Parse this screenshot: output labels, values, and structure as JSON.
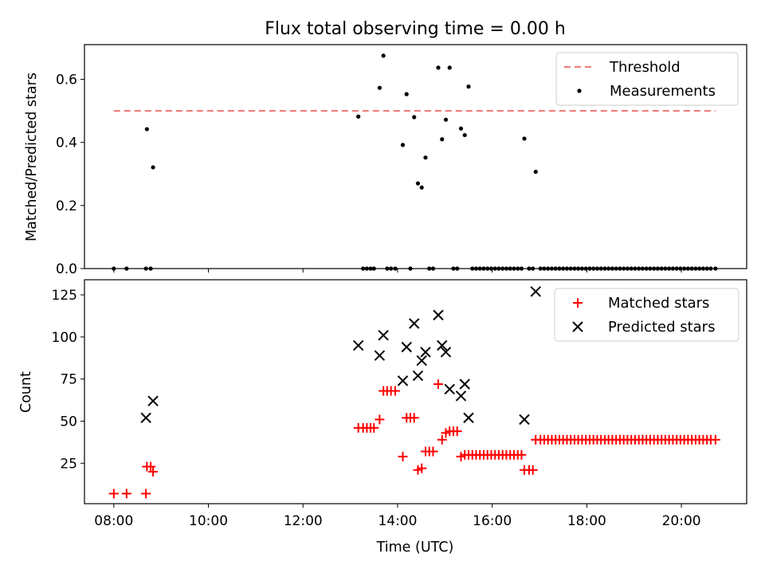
{
  "title": "Flux total observing time = 0.00 h",
  "chart_data": [
    {
      "type": "scatter",
      "ylabel": "Matched/Predicted stars",
      "xlim": [
        7.38,
        21.38
      ],
      "ylim": [
        0,
        0.71
      ],
      "yticks": [
        0,
        0.2,
        0.4,
        0.6
      ],
      "ytick_labels": [
        "0.0",
        "0.2",
        "0.4",
        "0.6"
      ],
      "xticks": [
        8,
        10,
        12,
        14,
        16,
        18,
        20
      ],
      "threshold": {
        "name": "Threshold",
        "value": 0.5,
        "x": [
          8.0,
          20.72
        ],
        "color": "#f08080"
      },
      "series": [
        {
          "name": "Measurements",
          "color": "#000000",
          "marker": "dot",
          "points": [
            [
              8.0,
              0
            ],
            [
              8.27,
              0
            ],
            [
              8.68,
              0
            ],
            [
              8.7,
              0.442
            ],
            [
              8.78,
              0
            ],
            [
              8.83,
              0.321
            ],
            [
              13.17,
              0.482
            ],
            [
              13.27,
              0
            ],
            [
              13.35,
              0
            ],
            [
              13.43,
              0
            ],
            [
              13.5,
              0
            ],
            [
              13.62,
              0.573
            ],
            [
              13.7,
              0.675
            ],
            [
              13.78,
              0
            ],
            [
              13.86,
              0
            ],
            [
              13.95,
              0
            ],
            [
              14.11,
              0.392
            ],
            [
              14.19,
              0.553
            ],
            [
              14.27,
              0
            ],
            [
              14.35,
              0.48
            ],
            [
              14.43,
              0.27
            ],
            [
              14.51,
              0.257
            ],
            [
              14.59,
              0.352
            ],
            [
              14.67,
              0
            ],
            [
              14.75,
              0
            ],
            [
              14.86,
              0.637
            ],
            [
              14.94,
              0.41
            ],
            [
              15.02,
              0.472
            ],
            [
              15.1,
              0.637
            ],
            [
              15.18,
              0
            ],
            [
              15.26,
              0
            ],
            [
              15.34,
              0.444
            ],
            [
              15.42,
              0.423
            ],
            [
              15.5,
              0.577
            ],
            [
              15.58,
              0
            ],
            [
              15.66,
              0
            ],
            [
              15.74,
              0
            ],
            [
              15.82,
              0
            ],
            [
              15.9,
              0
            ],
            [
              15.98,
              0
            ],
            [
              16.06,
              0
            ],
            [
              16.14,
              0
            ],
            [
              16.22,
              0
            ],
            [
              16.3,
              0
            ],
            [
              16.38,
              0
            ],
            [
              16.46,
              0
            ],
            [
              16.54,
              0
            ],
            [
              16.62,
              0
            ],
            [
              16.68,
              0.412
            ],
            [
              16.78,
              0
            ],
            [
              16.86,
              0
            ],
            [
              16.92,
              0.307
            ],
            [
              17.02,
              0
            ],
            [
              17.1,
              0
            ],
            [
              17.18,
              0
            ],
            [
              17.26,
              0
            ],
            [
              17.34,
              0
            ],
            [
              17.42,
              0
            ],
            [
              17.5,
              0
            ],
            [
              17.58,
              0
            ],
            [
              17.66,
              0
            ],
            [
              17.74,
              0
            ],
            [
              17.82,
              0
            ],
            [
              17.9,
              0
            ],
            [
              17.98,
              0
            ],
            [
              18.06,
              0
            ],
            [
              18.14,
              0
            ],
            [
              18.22,
              0
            ],
            [
              18.3,
              0
            ],
            [
              18.38,
              0
            ],
            [
              18.46,
              0
            ],
            [
              18.54,
              0
            ],
            [
              18.62,
              0
            ],
            [
              18.7,
              0
            ],
            [
              18.78,
              0
            ],
            [
              18.86,
              0
            ],
            [
              18.94,
              0
            ],
            [
              19.02,
              0
            ],
            [
              19.1,
              0
            ],
            [
              19.18,
              0
            ],
            [
              19.26,
              0
            ],
            [
              19.34,
              0
            ],
            [
              19.42,
              0
            ],
            [
              19.5,
              0
            ],
            [
              19.58,
              0
            ],
            [
              19.66,
              0
            ],
            [
              19.74,
              0
            ],
            [
              19.82,
              0
            ],
            [
              19.9,
              0
            ],
            [
              19.98,
              0
            ],
            [
              20.06,
              0
            ],
            [
              20.14,
              0
            ],
            [
              20.22,
              0
            ],
            [
              20.3,
              0
            ],
            [
              20.38,
              0
            ],
            [
              20.46,
              0
            ],
            [
              20.54,
              0
            ],
            [
              20.62,
              0
            ],
            [
              20.72,
              0
            ]
          ]
        }
      ],
      "legend": {
        "position": "upper right"
      }
    },
    {
      "type": "scatter",
      "xlabel": "Time (UTC)",
      "ylabel": "Count",
      "xlim": [
        7.38,
        21.38
      ],
      "ylim": [
        1,
        134
      ],
      "yticks": [
        25,
        50,
        75,
        100,
        125
      ],
      "ytick_labels": [
        "25",
        "50",
        "75",
        "100",
        "125"
      ],
      "xticks": [
        8,
        10,
        12,
        14,
        16,
        18,
        20
      ],
      "xtick_labels": [
        "08:00",
        "10:00",
        "12:00",
        "14:00",
        "16:00",
        "18:00",
        "20:00"
      ],
      "series": [
        {
          "name": "Matched stars",
          "color": "#ff0000",
          "marker": "plus",
          "points": [
            [
              8.0,
              7
            ],
            [
              8.27,
              7
            ],
            [
              8.68,
              7
            ],
            [
              8.7,
              23
            ],
            [
              8.78,
              23
            ],
            [
              8.83,
              20
            ],
            [
              13.17,
              46
            ],
            [
              13.27,
              46
            ],
            [
              13.35,
              46
            ],
            [
              13.43,
              46
            ],
            [
              13.5,
              46
            ],
            [
              13.62,
              51
            ],
            [
              13.7,
              68
            ],
            [
              13.78,
              68
            ],
            [
              13.86,
              68
            ],
            [
              13.95,
              68
            ],
            [
              14.11,
              29
            ],
            [
              14.19,
              52
            ],
            [
              14.27,
              52
            ],
            [
              14.35,
              52
            ],
            [
              14.43,
              21
            ],
            [
              14.51,
              22
            ],
            [
              14.59,
              32
            ],
            [
              14.67,
              32
            ],
            [
              14.75,
              32
            ],
            [
              14.86,
              72
            ],
            [
              14.94,
              39
            ],
            [
              15.02,
              43
            ],
            [
              15.1,
              44
            ],
            [
              15.18,
              44
            ],
            [
              15.26,
              44
            ],
            [
              15.34,
              29
            ],
            [
              15.42,
              30
            ],
            [
              15.5,
              30
            ],
            [
              15.58,
              30
            ],
            [
              15.66,
              30
            ],
            [
              15.74,
              30
            ],
            [
              15.82,
              30
            ],
            [
              15.9,
              30
            ],
            [
              15.98,
              30
            ],
            [
              16.06,
              30
            ],
            [
              16.14,
              30
            ],
            [
              16.22,
              30
            ],
            [
              16.3,
              30
            ],
            [
              16.38,
              30
            ],
            [
              16.46,
              30
            ],
            [
              16.54,
              30
            ],
            [
              16.62,
              30
            ],
            [
              16.68,
              21
            ],
            [
              16.78,
              21
            ],
            [
              16.86,
              21
            ],
            [
              16.92,
              39
            ],
            [
              17.02,
              39
            ],
            [
              17.1,
              39
            ],
            [
              17.18,
              39
            ],
            [
              17.26,
              39
            ],
            [
              17.34,
              39
            ],
            [
              17.42,
              39
            ],
            [
              17.5,
              39
            ],
            [
              17.58,
              39
            ],
            [
              17.66,
              39
            ],
            [
              17.74,
              39
            ],
            [
              17.82,
              39
            ],
            [
              17.9,
              39
            ],
            [
              17.98,
              39
            ],
            [
              18.06,
              39
            ],
            [
              18.14,
              39
            ],
            [
              18.22,
              39
            ],
            [
              18.3,
              39
            ],
            [
              18.38,
              39
            ],
            [
              18.46,
              39
            ],
            [
              18.54,
              39
            ],
            [
              18.62,
              39
            ],
            [
              18.7,
              39
            ],
            [
              18.78,
              39
            ],
            [
              18.86,
              39
            ],
            [
              18.94,
              39
            ],
            [
              19.02,
              39
            ],
            [
              19.1,
              39
            ],
            [
              19.18,
              39
            ],
            [
              19.26,
              39
            ],
            [
              19.34,
              39
            ],
            [
              19.42,
              39
            ],
            [
              19.5,
              39
            ],
            [
              19.58,
              39
            ],
            [
              19.66,
              39
            ],
            [
              19.74,
              39
            ],
            [
              19.82,
              39
            ],
            [
              19.9,
              39
            ],
            [
              19.98,
              39
            ],
            [
              20.06,
              39
            ],
            [
              20.14,
              39
            ],
            [
              20.22,
              39
            ],
            [
              20.3,
              39
            ],
            [
              20.38,
              39
            ],
            [
              20.46,
              39
            ],
            [
              20.54,
              39
            ],
            [
              20.62,
              39
            ],
            [
              20.72,
              39
            ]
          ]
        },
        {
          "name": "Predicted stars",
          "color": "#000000",
          "marker": "x",
          "points": [
            [
              8.68,
              52
            ],
            [
              8.83,
              62
            ],
            [
              13.17,
              95
            ],
            [
              13.62,
              89
            ],
            [
              13.7,
              101
            ],
            [
              14.11,
              74
            ],
            [
              14.19,
              94
            ],
            [
              14.35,
              108
            ],
            [
              14.43,
              77
            ],
            [
              14.51,
              86
            ],
            [
              14.59,
              91
            ],
            [
              14.86,
              113
            ],
            [
              14.94,
              95
            ],
            [
              15.02,
              91
            ],
            [
              15.1,
              69
            ],
            [
              15.34,
              65
            ],
            [
              15.42,
              72
            ],
            [
              15.5,
              52
            ],
            [
              16.68,
              51
            ],
            [
              16.92,
              127
            ]
          ]
        }
      ],
      "legend": {
        "position": "upper right"
      }
    }
  ]
}
